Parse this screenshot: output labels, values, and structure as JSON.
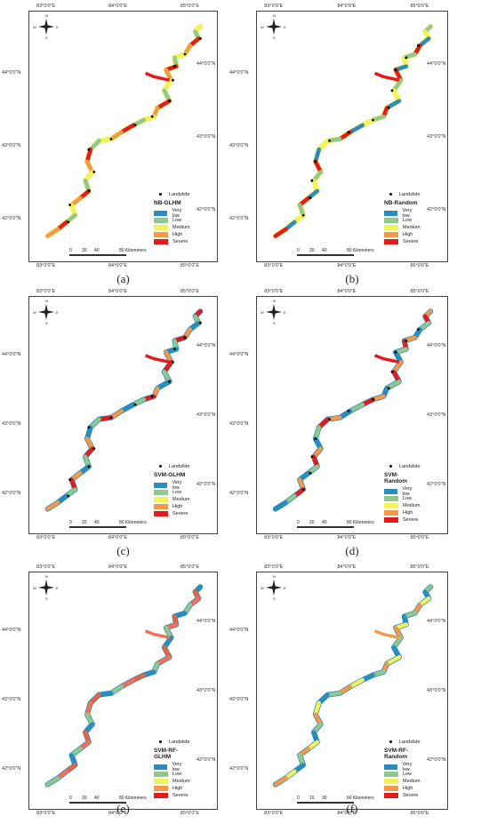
{
  "common": {
    "lon_labels": [
      "83°0'0\"E",
      "84°0'0\"E",
      "85°0'0\"E"
    ],
    "lat_labels": [
      "44°0'0\"N",
      "43°0'0\"N",
      "42°0'0\"N"
    ],
    "landslide_label": "Landslide",
    "scale_ticks": [
      "0",
      "20",
      "40",
      "80 Kilometers"
    ],
    "scale_ticks_alt": [
      "0",
      "15",
      "30",
      "60 Kilometers"
    ],
    "compass": {
      "n": "N",
      "s": "S",
      "e": "E",
      "w": "W"
    },
    "classes": [
      {
        "label": "Very low",
        "color": "#2b8cbe"
      },
      {
        "label": "Low",
        "color": "#8fc98f"
      },
      {
        "label": "Medium",
        "color": "#f2f25a"
      },
      {
        "label": "High",
        "color": "#f29a4a"
      },
      {
        "label": "Severe",
        "color": "#e41a1c"
      }
    ]
  },
  "panels": [
    {
      "id": "a",
      "caption": "(a)",
      "title": "NB-GLHM",
      "dominant": [
        "#f2f25a",
        "#f29a4a",
        "#e41a1c",
        "#8fc98f"
      ]
    },
    {
      "id": "b",
      "caption": "(b)",
      "title": "NB-Random",
      "dominant": [
        "#f2f25a",
        "#8fc98f",
        "#e41a1c",
        "#2b8cbe"
      ]
    },
    {
      "id": "c",
      "caption": "(c)",
      "title": "SVM-GLHM",
      "dominant": [
        "#2b8cbe",
        "#8fc98f",
        "#e41a1c",
        "#f29a4a"
      ]
    },
    {
      "id": "d",
      "caption": "(d)",
      "title": "SVM-Random",
      "dominant": [
        "#2b8cbe",
        "#8fc98f",
        "#e41a1c",
        "#f29a4a"
      ]
    },
    {
      "id": "e",
      "caption": "(e)",
      "title": "SVM-RF-GLHM",
      "dominant": [
        "#2b8cbe",
        "#8fc98f",
        "#f2705a",
        "#e8643c"
      ]
    },
    {
      "id": "f",
      "caption": "(f)",
      "title": "SVM-RF-Random",
      "dominant": [
        "#2b8cbe",
        "#8fc98f",
        "#f29a4a",
        "#f2f25a"
      ]
    }
  ],
  "very_low_last": "Very low"
}
